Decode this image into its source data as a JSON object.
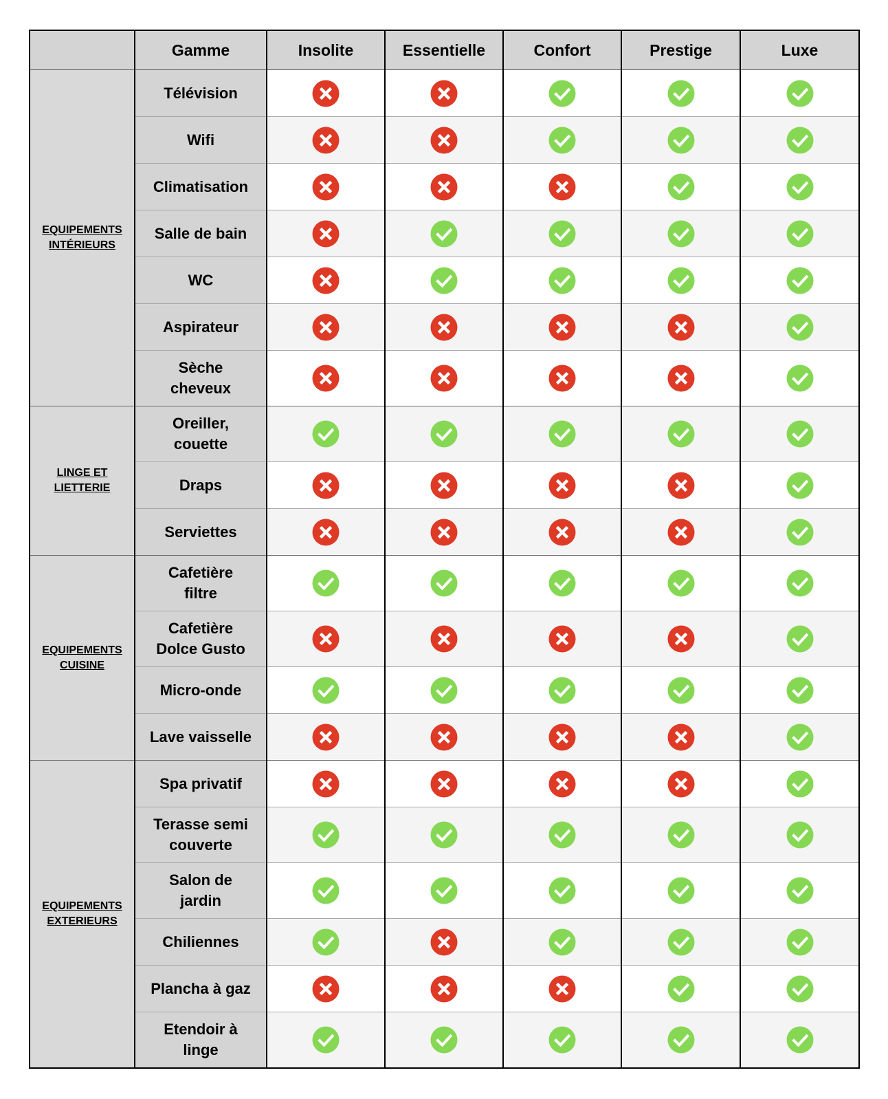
{
  "header": {
    "corner": "",
    "gamme": "Gamme",
    "columns": [
      "Insolite",
      "Essentielle",
      "Confort",
      "Prestige",
      "Luxe"
    ]
  },
  "colors": {
    "yes": "#86d854",
    "no": "#de3a26",
    "header_bg": "#d4d4d4",
    "group_bg": "#d9d9d9",
    "alt_row": "#f4f4f4"
  },
  "icons": {
    "yes": "check-circle-icon",
    "no": "cross-circle-icon"
  },
  "groups": [
    {
      "label": "EQUIPEMENTS INTÉRIEURS",
      "rows": [
        {
          "label": "Télévision",
          "values": [
            false,
            false,
            true,
            true,
            true
          ]
        },
        {
          "label": "Wifi",
          "values": [
            false,
            false,
            true,
            true,
            true
          ]
        },
        {
          "label": "Climatisation",
          "values": [
            false,
            false,
            false,
            true,
            true
          ]
        },
        {
          "label": "Salle de bain",
          "values": [
            false,
            true,
            true,
            true,
            true
          ]
        },
        {
          "label": "WC",
          "values": [
            false,
            true,
            true,
            true,
            true
          ]
        },
        {
          "label": "Aspirateur",
          "values": [
            false,
            false,
            false,
            false,
            true
          ]
        },
        {
          "label": "Sèche\ncheveux",
          "values": [
            false,
            false,
            false,
            false,
            true
          ]
        }
      ]
    },
    {
      "label": "LINGE ET LIETTERIE",
      "rows": [
        {
          "label": "Oreiller,\ncouette",
          "values": [
            true,
            true,
            true,
            true,
            true
          ]
        },
        {
          "label": "Draps",
          "values": [
            false,
            false,
            false,
            false,
            true
          ]
        },
        {
          "label": "Serviettes",
          "values": [
            false,
            false,
            false,
            false,
            true
          ]
        }
      ]
    },
    {
      "label": "EQUIPEMENTS CUISINE",
      "rows": [
        {
          "label": "Cafetière\nfiltre",
          "values": [
            true,
            true,
            true,
            true,
            true
          ]
        },
        {
          "label": "Cafetière\nDolce Gusto",
          "values": [
            false,
            false,
            false,
            false,
            true
          ]
        },
        {
          "label": "Micro-onde",
          "values": [
            true,
            true,
            true,
            true,
            true
          ]
        },
        {
          "label": "Lave vaisselle",
          "values": [
            false,
            false,
            false,
            false,
            true
          ]
        }
      ]
    },
    {
      "label": "EQUIPEMENTS EXTERIEURS",
      "rows": [
        {
          "label": "Spa privatif",
          "values": [
            false,
            false,
            false,
            false,
            true
          ]
        },
        {
          "label": "Terasse semi\ncouverte",
          "values": [
            true,
            true,
            true,
            true,
            true
          ]
        },
        {
          "label": "Salon de\njardin",
          "values": [
            true,
            true,
            true,
            true,
            true
          ]
        },
        {
          "label": "Chiliennes",
          "values": [
            true,
            false,
            true,
            true,
            true
          ]
        },
        {
          "label": "Plancha à gaz",
          "values": [
            false,
            false,
            false,
            true,
            true
          ]
        },
        {
          "label": "Etendoir à\nlinge",
          "values": [
            true,
            true,
            true,
            true,
            true
          ]
        }
      ]
    }
  ]
}
